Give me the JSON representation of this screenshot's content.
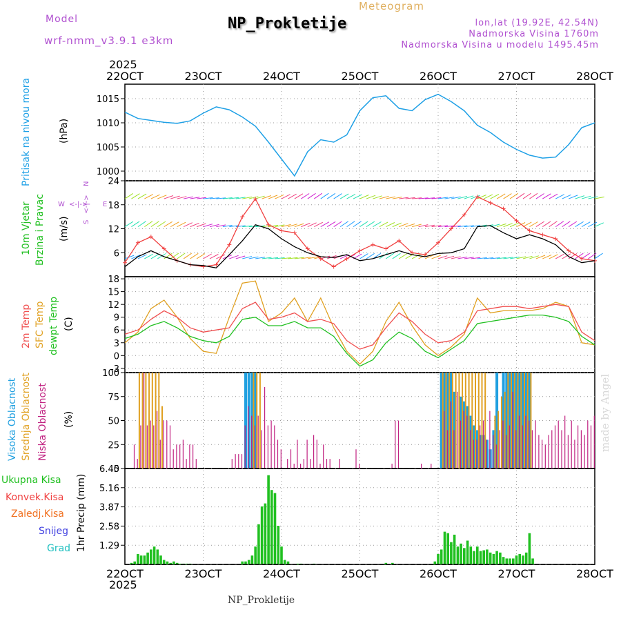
{
  "header": {
    "app_title": "Meteogram",
    "station": "NP_Prokletije",
    "model_label": "Model",
    "model_name": "wrf-nmm_v3.9.1  e3km",
    "coords": "lon,lat (19.92E, 42.54N)",
    "elevation": "Nadmorska Visina 1760m",
    "model_elevation": "Nadmorska Visina u modelu 1495.45m"
  },
  "footer": {
    "station": "NP_Prokletije",
    "watermark": "made by Angel"
  },
  "colors": {
    "pressure": "#1ea0e6",
    "wind_label": "#20c020",
    "wind_speed_line": "#000000",
    "wind_gust": "#f04040",
    "temp2m": "#f05050",
    "sfc": "#e0a020",
    "dewpt": "#20c020",
    "cloud_high": "#20a0e0",
    "cloud_mid": "#e0a020",
    "cloud_low": "#c02080",
    "precip_total": "#20c020",
    "precip_conv": "#f04040",
    "precip_strat": "#f07020",
    "snow": "#4040e0",
    "hail": "#20c0c0",
    "compass": "#b050d0"
  },
  "time_axis": {
    "year": "2025",
    "dates": [
      "22OCT",
      "23OCT",
      "24OCT",
      "25OCT",
      "26OCT",
      "27OCT",
      "28OCT"
    ]
  },
  "compass": {
    "w": "W",
    "e": "E",
    "n": "N",
    "s": "S",
    "arrows": "<-|->"
  },
  "chart_data": [
    {
      "type": "line",
      "id": "pressure",
      "ylabel_1": "Pritisak na nivou mora",
      "ylabel_2": "(hPa)",
      "ylim": [
        998.0,
        1018.0
      ],
      "yticks": [
        "1000",
        "1005",
        "1010",
        "1015"
      ],
      "ytick_values": [
        1000,
        1005,
        1010,
        1015
      ],
      "x": [
        0,
        4,
        8,
        12,
        16,
        20,
        24,
        28,
        32,
        36,
        40,
        44,
        48,
        52,
        56,
        60,
        64,
        68,
        72,
        76,
        80,
        84,
        88,
        92,
        96,
        100,
        104,
        108,
        112,
        116,
        120,
        124,
        128,
        132,
        136,
        140,
        144
      ],
      "values": [
        1012.2,
        1010.9,
        1010.5,
        1010.1,
        1009.9,
        1010.4,
        1012.0,
        1013.3,
        1012.7,
        1011.2,
        1009.3,
        1006.0,
        1002.5,
        999.0,
        1004.0,
        1006.5,
        1006.0,
        1007.5,
        1012.5,
        1015.2,
        1015.6,
        1013.0,
        1012.5,
        1014.8,
        1015.9,
        1014.4,
        1012.5,
        1009.5,
        1008.0,
        1006.0,
        1004.5,
        1003.3,
        1002.7,
        1002.9,
        1005.5,
        1009.0,
        1010.0
      ]
    },
    {
      "type": "line",
      "id": "wind",
      "ylabel_1": "10m Vjetar",
      "ylabel_2": "Brzina i Pravac",
      "ylabel_3": "(m/s)",
      "ylim": [
        0,
        24
      ],
      "yticks": [
        "6",
        "12",
        "18",
        "24"
      ],
      "ytick_values": [
        6,
        12,
        18,
        24
      ],
      "x": [
        0,
        4,
        8,
        12,
        16,
        20,
        24,
        28,
        32,
        36,
        40,
        44,
        48,
        52,
        56,
        60,
        64,
        68,
        72,
        76,
        80,
        84,
        88,
        92,
        96,
        100,
        104,
        108,
        112,
        116,
        120,
        124,
        128,
        132,
        136,
        140,
        144
      ],
      "series": [
        {
          "name": "brzina",
          "values": [
            2.5,
            5.0,
            6.5,
            5.0,
            4.0,
            3.0,
            2.8,
            2.2,
            5.5,
            9.0,
            13.0,
            12.0,
            9.5,
            7.5,
            6.0,
            5.0,
            4.8,
            5.5,
            4.0,
            4.5,
            5.5,
            6.5,
            5.5,
            5.0,
            5.8,
            6.0,
            7.0,
            12.5,
            12.8,
            11.0,
            9.5,
            10.5,
            9.5,
            8.0,
            5.0,
            3.5,
            4.0
          ]
        },
        {
          "name": "udari",
          "values": [
            3.5,
            8.5,
            10.0,
            7.0,
            4.0,
            3.0,
            2.5,
            3.0,
            8.0,
            15.0,
            19.5,
            13.0,
            11.5,
            11.0,
            7.0,
            4.5,
            2.5,
            4.5,
            6.5,
            8.0,
            7.0,
            9.0,
            6.0,
            5.5,
            8.5,
            12.0,
            15.5,
            20.0,
            18.5,
            17.0,
            14.0,
            11.5,
            10.5,
            9.5,
            6.5,
            4.5,
            4.0
          ]
        }
      ]
    },
    {
      "type": "line",
      "id": "temperature",
      "ylabel_1": "2m Temp",
      "ylabel_2": "SFC Temp",
      "ylabel_3": "dewpt Temp",
      "ylabel_4": "(C)",
      "ylim": [
        -4,
        18.5
      ],
      "yticks": [
        "-3",
        "0",
        "3",
        "6",
        "9",
        "12",
        "15",
        "18"
      ],
      "ytick_values": [
        -3,
        0,
        3,
        6,
        9,
        12,
        15,
        18
      ],
      "x": [
        0,
        4,
        8,
        12,
        16,
        20,
        24,
        28,
        32,
        36,
        40,
        44,
        48,
        52,
        56,
        60,
        64,
        68,
        72,
        76,
        80,
        84,
        88,
        92,
        96,
        100,
        104,
        108,
        112,
        116,
        120,
        124,
        128,
        132,
        136,
        140,
        144
      ],
      "series": [
        {
          "name": "2m Temp",
          "values": [
            5.0,
            6.0,
            8.5,
            10.5,
            9.0,
            6.5,
            5.5,
            6.0,
            6.5,
            11.0,
            12.5,
            8.5,
            9.0,
            10.0,
            8.0,
            8.5,
            7.5,
            3.5,
            1.5,
            2.5,
            6.5,
            10.0,
            8.0,
            5.0,
            3.0,
            3.5,
            5.5,
            10.5,
            11.0,
            11.5,
            11.5,
            11.0,
            11.5,
            12.0,
            11.5,
            5.5,
            3.5
          ]
        },
        {
          "name": "SFC Temp",
          "values": [
            3.0,
            5.5,
            11.0,
            13.0,
            9.0,
            4.0,
            1.0,
            0.5,
            9.0,
            17.0,
            17.5,
            8.0,
            10.0,
            13.5,
            8.0,
            13.5,
            6.5,
            1.0,
            -2.0,
            1.0,
            8.0,
            12.5,
            7.0,
            2.5,
            0.0,
            2.0,
            5.0,
            13.5,
            10.0,
            10.5,
            10.5,
            10.5,
            11.0,
            12.5,
            11.5,
            3.0,
            2.5
          ]
        },
        {
          "name": "dewpt Temp",
          "values": [
            4.0,
            5.0,
            7.0,
            8.0,
            6.5,
            4.5,
            3.5,
            3.0,
            4.5,
            8.5,
            9.0,
            7.0,
            7.0,
            8.0,
            6.5,
            6.5,
            4.5,
            0.5,
            -2.5,
            -1.0,
            3.0,
            5.5,
            4.0,
            1.0,
            -0.5,
            1.5,
            3.5,
            7.5,
            8.0,
            8.5,
            9.0,
            9.5,
            9.5,
            9.0,
            8.0,
            4.5,
            2.5
          ]
        }
      ]
    },
    {
      "type": "bar",
      "id": "clouds",
      "ylabel_1": "Visoka Oblacnost",
      "ylabel_2": "Srednja Oblacnost",
      "ylabel_3": "Niska Oblacnost",
      "ylabel_4": "(%)",
      "ylim": [
        0,
        100
      ],
      "yticks": [
        "0",
        "25",
        "50",
        "75",
        "100"
      ],
      "ytick_values": [
        0,
        25,
        50,
        75,
        100
      ],
      "series": [
        {
          "name": "Visoka",
          "x": [
            37,
            38,
            39,
            40,
            97,
            98,
            99,
            100,
            101,
            103,
            104,
            105,
            106,
            107,
            108,
            109,
            110,
            111,
            112,
            113,
            114,
            116,
            117,
            118,
            119,
            120,
            121,
            122,
            123,
            124
          ],
          "values": [
            100,
            100,
            100,
            100,
            100,
            100,
            100,
            100,
            80,
            75,
            70,
            65,
            55,
            45,
            40,
            35,
            35,
            30,
            20,
            40,
            100,
            100,
            100,
            100,
            100,
            100,
            100,
            100,
            100,
            100
          ]
        },
        {
          "name": "Srednja",
          "x": [
            4,
            5,
            6,
            7,
            8,
            9,
            10,
            11,
            39,
            40,
            41,
            97,
            98,
            99,
            100,
            101,
            102,
            103,
            104,
            105,
            106,
            107,
            108,
            109,
            110,
            113,
            114,
            115,
            116,
            117,
            118,
            119,
            120,
            121,
            122,
            123,
            124
          ],
          "values": [
            100,
            100,
            100,
            100,
            100,
            100,
            100,
            65,
            100,
            100,
            100,
            100,
            100,
            100,
            100,
            100,
            100,
            100,
            100,
            100,
            100,
            100,
            100,
            100,
            100,
            55,
            60,
            75,
            80,
            100,
            100,
            100,
            100,
            100,
            100,
            100,
            100
          ]
        },
        {
          "name": "Niska",
          "x": [
            2,
            3,
            4,
            5,
            6,
            7,
            8,
            9,
            10,
            11,
            12,
            13,
            14,
            15,
            16,
            17,
            18,
            19,
            20,
            21,
            32,
            33,
            34,
            35,
            36,
            37,
            38,
            39,
            40,
            41,
            42,
            43,
            44,
            45,
            46,
            47,
            49,
            50,
            51,
            52,
            53,
            54,
            55,
            56,
            57,
            58,
            59,
            60,
            61,
            62,
            65,
            70,
            71,
            81,
            82,
            83,
            90,
            93,
            97,
            98,
            99,
            100,
            101,
            102,
            103,
            104,
            105,
            106,
            107,
            108,
            109,
            110,
            111,
            112,
            113,
            114,
            115,
            116,
            117,
            118,
            119,
            120,
            121,
            122,
            123,
            124,
            125,
            126,
            127,
            128,
            129,
            130,
            131,
            132,
            133,
            134,
            135,
            136,
            137,
            138,
            139,
            140,
            141,
            142,
            143
          ],
          "values": [
            25,
            10,
            45,
            100,
            45,
            50,
            45,
            60,
            30,
            50,
            50,
            45,
            20,
            25,
            25,
            30,
            10,
            25,
            25,
            10,
            10,
            15,
            15,
            15,
            45,
            65,
            55,
            45,
            55,
            40,
            85,
            45,
            50,
            45,
            30,
            20,
            10,
            20,
            5,
            30,
            5,
            10,
            30,
            10,
            35,
            30,
            5,
            25,
            10,
            10,
            10,
            20,
            5,
            5,
            50,
            50,
            5,
            5,
            60,
            40,
            70,
            40,
            80,
            50,
            60,
            55,
            40,
            30,
            30,
            45,
            50,
            30,
            60,
            35,
            25,
            40,
            50,
            35,
            45,
            80,
            40,
            55,
            45,
            55,
            50,
            40,
            50,
            35,
            30,
            25,
            35,
            40,
            45,
            50,
            40,
            55,
            35,
            50,
            30,
            45,
            40,
            35,
            50,
            45,
            55
          ]
        }
      ]
    },
    {
      "type": "bar",
      "id": "precip",
      "ylabel_1": "1hr Precip (mm)",
      "legend": [
        "Ukupna Kisa",
        "Konvek.Kisa",
        "Zaledj.Kisa",
        "Snijeg",
        "Grad"
      ],
      "ylim": [
        0,
        6.45
      ],
      "yticks": [
        "1.29",
        "2.58",
        "3.87",
        "5.16",
        "6.45"
      ],
      "ytick_values": [
        1.29,
        2.58,
        3.87,
        5.16,
        6.45
      ],
      "series": [
        {
          "name": "Ukupna Kisa",
          "x": [
            2,
            3,
            4,
            5,
            6,
            7,
            8,
            9,
            10,
            11,
            12,
            13,
            14,
            15,
            16,
            17,
            18,
            19,
            20,
            36,
            37,
            38,
            39,
            40,
            41,
            42,
            43,
            44,
            45,
            46,
            47,
            48,
            49,
            50,
            53,
            54,
            58,
            80,
            82,
            95,
            96,
            97,
            98,
            99,
            100,
            101,
            102,
            103,
            104,
            105,
            106,
            107,
            108,
            109,
            110,
            111,
            112,
            113,
            114,
            115,
            116,
            117,
            118,
            119,
            120,
            121,
            122,
            123,
            124,
            125
          ],
          "values": [
            0.1,
            0.2,
            0.7,
            0.6,
            0.6,
            0.8,
            1.0,
            1.2,
            1.0,
            0.6,
            0.3,
            0.2,
            0.1,
            0.2,
            0.1,
            0.05,
            0.05,
            0.05,
            0.05,
            0.2,
            0.2,
            0.3,
            0.6,
            1.2,
            2.7,
            3.9,
            4.1,
            6.0,
            5.0,
            4.8,
            2.6,
            1.2,
            0.3,
            0.2,
            0.05,
            0.05,
            0.05,
            0.1,
            0.1,
            0.2,
            0.7,
            1.0,
            2.2,
            2.1,
            1.5,
            2.0,
            1.2,
            1.4,
            1.1,
            1.6,
            1.2,
            0.9,
            1.2,
            0.9,
            0.95,
            1.0,
            0.8,
            0.7,
            0.9,
            0.8,
            0.5,
            0.4,
            0.4,
            0.4,
            0.6,
            0.7,
            0.6,
            0.8,
            2.1,
            0.4
          ]
        }
      ]
    }
  ]
}
